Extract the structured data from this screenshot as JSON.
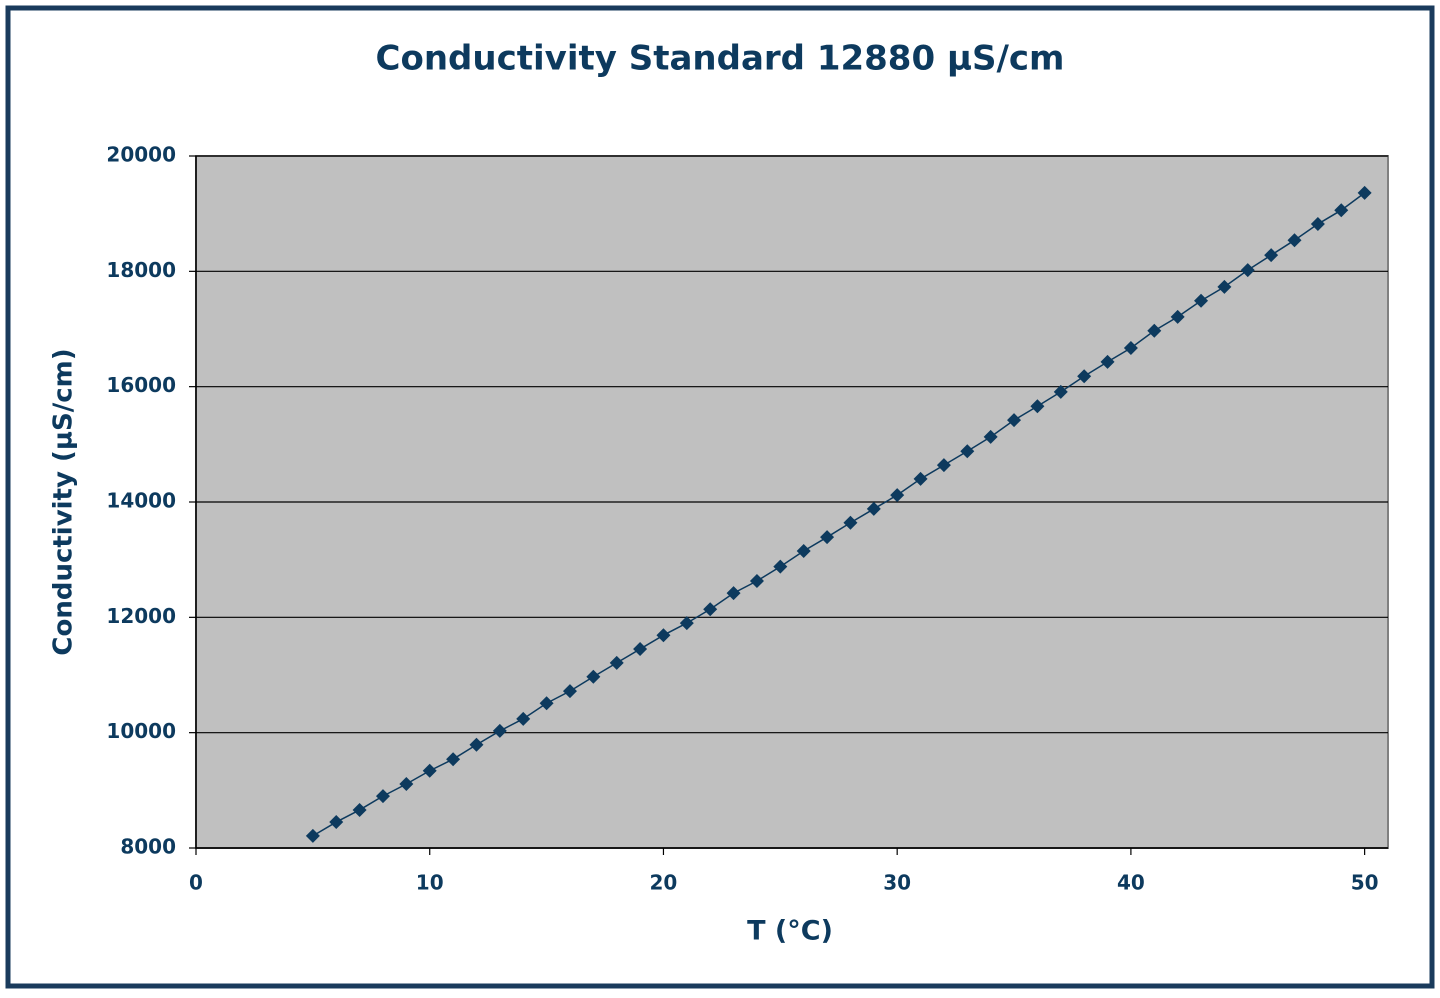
{
  "chart_data": {
    "type": "scatter",
    "title": "Conductivity Standard 12880 µS/cm",
    "x_label": "T (°C)",
    "y_label": "Conductivity (µS/cm)",
    "x": [
      5,
      6,
      7,
      8,
      9,
      10,
      11,
      12,
      13,
      14,
      15,
      16,
      17,
      18,
      19,
      20,
      21,
      22,
      23,
      24,
      25,
      26,
      27,
      28,
      29,
      30,
      31,
      32,
      33,
      34,
      35,
      36,
      37,
      38,
      39,
      40,
      41,
      42,
      43,
      44,
      45,
      46,
      47,
      48,
      49,
      50
    ],
    "values": [
      8210,
      8450,
      8660,
      8900,
      9110,
      9340,
      9540,
      9790,
      10030,
      10240,
      10510,
      10720,
      10970,
      11210,
      11450,
      11690,
      11900,
      12140,
      12420,
      12630,
      12880,
      13150,
      13390,
      13640,
      13880,
      14120,
      14400,
      14640,
      14880,
      15130,
      15420,
      15660,
      15910,
      16180,
      16430,
      16670,
      16970,
      17210,
      17490,
      17730,
      18020,
      18280,
      18540,
      18820,
      19060,
      19360
    ],
    "color": "#0d3a5e",
    "marker": "diamond",
    "xlim": [
      0,
      51
    ],
    "xticks": [
      0,
      10,
      20,
      30,
      40,
      50
    ],
    "ylim": [
      8000,
      20000
    ],
    "yticks": [
      8000,
      10000,
      12000,
      14000,
      16000,
      18000,
      20000
    ],
    "grid": true,
    "plot_background": "#c0c0c0"
  }
}
